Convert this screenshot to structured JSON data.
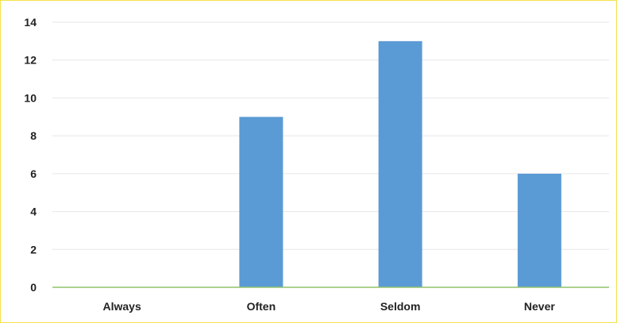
{
  "chart_data": {
    "type": "bar",
    "categories": [
      "Always",
      "Often",
      "Seldom",
      "Never"
    ],
    "values": [
      0,
      9,
      13,
      6
    ],
    "ylim": [
      0,
      14
    ],
    "yticks": [
      0,
      2,
      4,
      6,
      8,
      10,
      12,
      14
    ],
    "grid": true,
    "legend": "none",
    "colors": {
      "bar": "#5b9bd5",
      "grid": "#e6e6e6",
      "baseline": "#92c36a",
      "border": "#f2e24a"
    }
  }
}
